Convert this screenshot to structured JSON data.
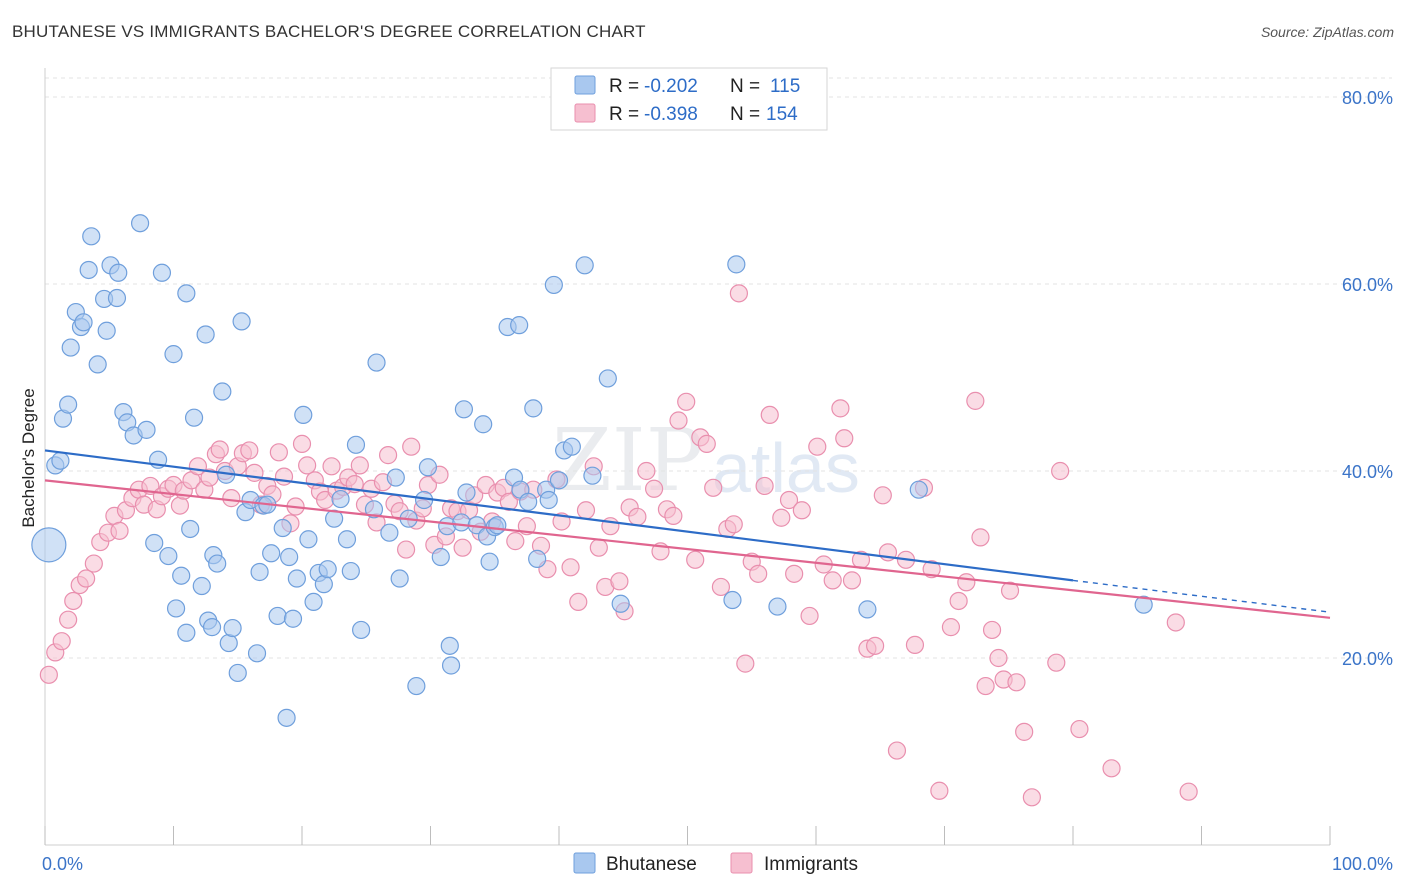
{
  "header": {
    "title": "BHUTANESE VS IMMIGRANTS BACHELOR'S DEGREE CORRELATION CHART",
    "source": "Source: ZipAtlas.com"
  },
  "watermark": {
    "part1": "ZIP",
    "part2": "atlas"
  },
  "legend": {
    "rows": [
      {
        "r_label": "R =",
        "r_value": "-0.202",
        "n_label": "N =",
        "n_value": "115"
      },
      {
        "r_label": "R =",
        "r_value": "-0.398",
        "n_label": "N =",
        "n_value": "154"
      }
    ]
  },
  "bottom_legend": {
    "items": [
      "Bhutanese",
      "Immigrants"
    ]
  },
  "colors": {
    "blue_fill": "#a9c8ef",
    "blue_stroke": "#6f9fdc",
    "blue_line": "#2d6cc7",
    "pink_fill": "#f6bfd0",
    "pink_stroke": "#e98fae",
    "pink_line": "#e0658f",
    "tick_text": "#3b74c8",
    "grid": "#e3e3e3"
  },
  "chart_data": {
    "type": "scatter",
    "title": "BHUTANESE VS IMMIGRANTS BACHELOR'S DEGREE CORRELATION CHART",
    "xlabel": "",
    "ylabel": "Bachelor's Degree",
    "xlim": [
      0,
      100
    ],
    "ylim": [
      0,
      80
    ],
    "x_tick_labels": [
      "0.0%",
      "100.0%"
    ],
    "y_ticks": [
      20,
      40,
      60,
      80
    ],
    "y_tick_labels": [
      "20.0%",
      "40.0%",
      "60.0%",
      "80.0%"
    ],
    "grid": true,
    "legend_position": "top-center",
    "series": [
      {
        "name": "Bhutanese",
        "r": -0.202,
        "n": 115,
        "trend": {
          "x0": 0,
          "y0": 42.2,
          "x1": 80,
          "y1": 28.3,
          "dash_to_x": 100,
          "dash_to_y": 24.9
        },
        "points": [
          [
            0.3,
            32.1
          ],
          [
            0.8,
            40.6
          ],
          [
            1.2,
            41.1
          ],
          [
            1.4,
            45.6
          ],
          [
            1.8,
            47.1
          ],
          [
            2.0,
            53.2
          ],
          [
            2.4,
            57.0
          ],
          [
            2.8,
            55.4
          ],
          [
            3.0,
            55.9
          ],
          [
            3.4,
            61.5
          ],
          [
            3.6,
            65.1
          ],
          [
            4.1,
            51.4
          ],
          [
            4.6,
            58.4
          ],
          [
            4.8,
            55.0
          ],
          [
            5.1,
            62.0
          ],
          [
            5.6,
            58.5
          ],
          [
            5.7,
            61.2
          ],
          [
            6.1,
            46.3
          ],
          [
            6.4,
            45.2
          ],
          [
            6.9,
            43.8
          ],
          [
            7.4,
            66.5
          ],
          [
            7.9,
            44.4
          ],
          [
            8.5,
            32.3
          ],
          [
            8.8,
            41.2
          ],
          [
            9.1,
            61.2
          ],
          [
            9.6,
            30.9
          ],
          [
            10.0,
            52.5
          ],
          [
            10.2,
            25.3
          ],
          [
            10.6,
            28.8
          ],
          [
            11.0,
            22.7
          ],
          [
            11.0,
            59.0
          ],
          [
            11.3,
            33.8
          ],
          [
            11.6,
            45.7
          ],
          [
            12.2,
            27.7
          ],
          [
            12.5,
            54.6
          ],
          [
            12.7,
            24.0
          ],
          [
            13.0,
            23.3
          ],
          [
            13.1,
            31.0
          ],
          [
            13.4,
            30.1
          ],
          [
            13.8,
            48.5
          ],
          [
            14.1,
            39.6
          ],
          [
            14.3,
            21.6
          ],
          [
            14.6,
            23.2
          ],
          [
            15.0,
            18.4
          ],
          [
            15.3,
            56.0
          ],
          [
            15.6,
            35.6
          ],
          [
            16.0,
            36.9
          ],
          [
            16.5,
            20.5
          ],
          [
            16.7,
            29.2
          ],
          [
            17.0,
            36.3
          ],
          [
            17.3,
            36.4
          ],
          [
            17.6,
            31.2
          ],
          [
            18.1,
            24.5
          ],
          [
            18.5,
            33.9
          ],
          [
            18.8,
            13.6
          ],
          [
            19.0,
            30.8
          ],
          [
            19.3,
            24.2
          ],
          [
            19.6,
            28.5
          ],
          [
            20.1,
            46.0
          ],
          [
            20.5,
            32.7
          ],
          [
            20.9,
            26.0
          ],
          [
            21.3,
            29.1
          ],
          [
            21.7,
            27.9
          ],
          [
            22.0,
            29.5
          ],
          [
            22.5,
            34.9
          ],
          [
            23.0,
            37.0
          ],
          [
            23.5,
            32.7
          ],
          [
            23.8,
            29.3
          ],
          [
            24.2,
            42.8
          ],
          [
            24.6,
            23.0
          ],
          [
            25.6,
            35.9
          ],
          [
            25.8,
            51.6
          ],
          [
            26.8,
            33.4
          ],
          [
            27.3,
            39.3
          ],
          [
            27.6,
            28.5
          ],
          [
            28.3,
            34.9
          ],
          [
            28.9,
            17.0
          ],
          [
            29.5,
            36.9
          ],
          [
            29.8,
            40.4
          ],
          [
            30.8,
            30.8
          ],
          [
            31.3,
            34.1
          ],
          [
            31.5,
            21.3
          ],
          [
            31.6,
            19.2
          ],
          [
            32.4,
            34.5
          ],
          [
            32.6,
            46.6
          ],
          [
            32.8,
            37.7
          ],
          [
            33.6,
            34.2
          ],
          [
            34.1,
            45.0
          ],
          [
            34.4,
            33.0
          ],
          [
            34.6,
            30.3
          ],
          [
            35.0,
            34.0
          ],
          [
            35.2,
            34.2
          ],
          [
            36.0,
            55.4
          ],
          [
            36.5,
            39.3
          ],
          [
            36.9,
            55.6
          ],
          [
            37.0,
            38.0
          ],
          [
            37.6,
            36.7
          ],
          [
            38.0,
            46.7
          ],
          [
            38.3,
            30.6
          ],
          [
            39.0,
            38.0
          ],
          [
            39.2,
            36.9
          ],
          [
            39.6,
            59.9
          ],
          [
            40.0,
            39.0
          ],
          [
            40.4,
            42.2
          ],
          [
            41.0,
            42.6
          ],
          [
            42.0,
            62.0
          ],
          [
            42.6,
            39.5
          ],
          [
            43.8,
            49.9
          ],
          [
            44.8,
            25.8
          ],
          [
            53.5,
            26.2
          ],
          [
            53.8,
            62.1
          ],
          [
            57.0,
            25.5
          ],
          [
            64.0,
            25.2
          ],
          [
            68.0,
            38.0
          ],
          [
            85.5,
            25.7
          ]
        ]
      },
      {
        "name": "Immigrants",
        "r": -0.398,
        "n": 154,
        "trend": {
          "x0": 0,
          "y0": 39.0,
          "x1": 100,
          "y1": 24.3
        },
        "points": [
          [
            0.3,
            18.2
          ],
          [
            0.8,
            20.6
          ],
          [
            1.3,
            21.8
          ],
          [
            1.8,
            24.1
          ],
          [
            2.2,
            26.1
          ],
          [
            2.7,
            27.8
          ],
          [
            3.2,
            28.5
          ],
          [
            3.8,
            30.1
          ],
          [
            4.3,
            32.4
          ],
          [
            4.9,
            33.4
          ],
          [
            5.4,
            35.2
          ],
          [
            5.8,
            33.6
          ],
          [
            6.3,
            35.8
          ],
          [
            6.8,
            37.1
          ],
          [
            7.3,
            38.0
          ],
          [
            7.7,
            36.4
          ],
          [
            8.2,
            38.4
          ],
          [
            8.7,
            35.9
          ],
          [
            9.1,
            37.3
          ],
          [
            9.6,
            38.1
          ],
          [
            10.0,
            38.5
          ],
          [
            10.5,
            36.3
          ],
          [
            10.8,
            37.9
          ],
          [
            11.4,
            39.0
          ],
          [
            11.9,
            40.5
          ],
          [
            12.4,
            38.0
          ],
          [
            12.8,
            39.3
          ],
          [
            13.3,
            41.8
          ],
          [
            13.6,
            42.3
          ],
          [
            14.0,
            40.0
          ],
          [
            14.5,
            37.1
          ],
          [
            15.0,
            40.5
          ],
          [
            15.4,
            41.9
          ],
          [
            15.9,
            42.2
          ],
          [
            16.3,
            39.8
          ],
          [
            16.8,
            36.4
          ],
          [
            17.3,
            38.4
          ],
          [
            17.7,
            37.5
          ],
          [
            18.2,
            42.0
          ],
          [
            18.6,
            39.4
          ],
          [
            19.1,
            34.4
          ],
          [
            19.5,
            36.2
          ],
          [
            20.0,
            42.9
          ],
          [
            20.4,
            40.6
          ],
          [
            21.0,
            39.0
          ],
          [
            21.4,
            37.8
          ],
          [
            21.8,
            36.9
          ],
          [
            22.3,
            40.5
          ],
          [
            22.7,
            37.9
          ],
          [
            23.2,
            38.3
          ],
          [
            23.6,
            39.3
          ],
          [
            24.1,
            38.6
          ],
          [
            24.5,
            40.6
          ],
          [
            24.9,
            36.4
          ],
          [
            25.4,
            38.1
          ],
          [
            25.8,
            34.5
          ],
          [
            26.3,
            38.8
          ],
          [
            26.7,
            41.7
          ],
          [
            27.2,
            36.5
          ],
          [
            27.6,
            35.7
          ],
          [
            28.1,
            31.6
          ],
          [
            28.5,
            42.6
          ],
          [
            28.9,
            34.7
          ],
          [
            29.4,
            36.0
          ],
          [
            29.8,
            38.5
          ],
          [
            30.3,
            32.1
          ],
          [
            30.7,
            39.6
          ],
          [
            31.2,
            33.0
          ],
          [
            31.6,
            36.0
          ],
          [
            32.1,
            35.7
          ],
          [
            32.5,
            31.8
          ],
          [
            33.0,
            35.8
          ],
          [
            33.4,
            37.4
          ],
          [
            33.9,
            33.5
          ],
          [
            34.3,
            38.5
          ],
          [
            34.8,
            34.6
          ],
          [
            35.2,
            37.7
          ],
          [
            35.7,
            38.2
          ],
          [
            36.1,
            36.7
          ],
          [
            36.6,
            32.5
          ],
          [
            37.0,
            37.8
          ],
          [
            37.5,
            34.1
          ],
          [
            38.0,
            38.0
          ],
          [
            38.6,
            32.0
          ],
          [
            39.1,
            29.5
          ],
          [
            39.8,
            39.1
          ],
          [
            40.2,
            34.6
          ],
          [
            40.9,
            29.7
          ],
          [
            41.5,
            26.0
          ],
          [
            42.1,
            35.8
          ],
          [
            42.7,
            40.5
          ],
          [
            43.1,
            31.8
          ],
          [
            43.6,
            27.6
          ],
          [
            44.0,
            34.1
          ],
          [
            44.7,
            28.2
          ],
          [
            45.1,
            25.0
          ],
          [
            45.5,
            36.1
          ],
          [
            46.1,
            35.1
          ],
          [
            46.8,
            40.0
          ],
          [
            47.4,
            38.1
          ],
          [
            47.9,
            31.4
          ],
          [
            48.4,
            35.9
          ],
          [
            48.9,
            35.2
          ],
          [
            49.3,
            45.4
          ],
          [
            49.9,
            47.4
          ],
          [
            50.6,
            30.5
          ],
          [
            51.0,
            43.6
          ],
          [
            51.5,
            42.9
          ],
          [
            52.0,
            38.2
          ],
          [
            52.6,
            27.6
          ],
          [
            53.1,
            33.8
          ],
          [
            53.6,
            34.3
          ],
          [
            54.0,
            59.0
          ],
          [
            54.5,
            19.4
          ],
          [
            55.0,
            30.3
          ],
          [
            55.5,
            29.0
          ],
          [
            56.0,
            38.4
          ],
          [
            56.4,
            46.0
          ],
          [
            57.3,
            35.0
          ],
          [
            57.9,
            36.9
          ],
          [
            58.3,
            29.0
          ],
          [
            58.9,
            35.8
          ],
          [
            59.5,
            24.5
          ],
          [
            60.1,
            42.6
          ],
          [
            60.6,
            30.0
          ],
          [
            61.3,
            28.3
          ],
          [
            61.9,
            46.7
          ],
          [
            62.2,
            43.5
          ],
          [
            62.8,
            28.3
          ],
          [
            63.5,
            30.5
          ],
          [
            64.0,
            21.0
          ],
          [
            64.6,
            21.3
          ],
          [
            65.2,
            37.4
          ],
          [
            65.6,
            31.3
          ],
          [
            66.3,
            10.1
          ],
          [
            67.0,
            30.5
          ],
          [
            67.7,
            21.4
          ],
          [
            68.4,
            38.2
          ],
          [
            69.0,
            29.5
          ],
          [
            69.6,
            5.8
          ],
          [
            70.5,
            23.3
          ],
          [
            71.1,
            26.1
          ],
          [
            71.7,
            28.1
          ],
          [
            72.4,
            47.5
          ],
          [
            72.8,
            32.9
          ],
          [
            73.2,
            17.0
          ],
          [
            73.7,
            23.0
          ],
          [
            74.2,
            20.0
          ],
          [
            74.6,
            17.7
          ],
          [
            75.1,
            27.2
          ],
          [
            75.6,
            17.4
          ],
          [
            76.2,
            12.1
          ],
          [
            76.8,
            5.1
          ],
          [
            78.7,
            19.5
          ],
          [
            79.0,
            40.0
          ],
          [
            80.5,
            12.4
          ],
          [
            83.0,
            8.2
          ],
          [
            88.0,
            23.8
          ],
          [
            89.0,
            5.7
          ]
        ]
      }
    ]
  }
}
